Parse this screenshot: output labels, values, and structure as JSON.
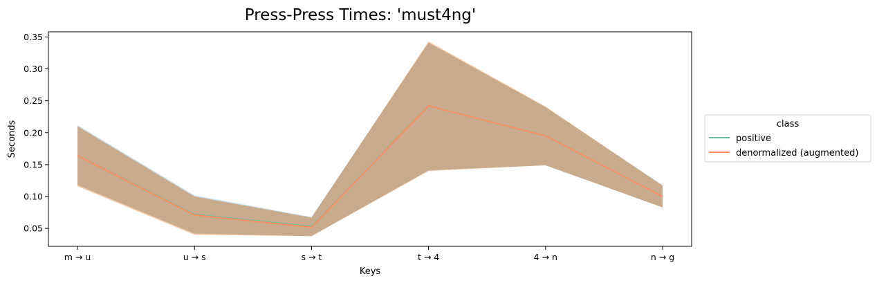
{
  "chart_data": {
    "type": "line",
    "title": "Press-Press Times: 'must4ng'",
    "xlabel": "Keys",
    "ylabel": "Seconds",
    "categories": [
      "m → u",
      "u → s",
      "s → t",
      "t → 4",
      "4 → n",
      "n → g"
    ],
    "ylim": [
      0.022,
      0.358
    ],
    "yticks": [
      0.05,
      0.1,
      0.15,
      0.2,
      0.25,
      0.3,
      0.35
    ],
    "ytick_labels": [
      "0.05",
      "0.10",
      "0.15",
      "0.20",
      "0.25",
      "0.30",
      "0.35"
    ],
    "grid": false,
    "legend": {
      "title": "class",
      "placement": "right"
    },
    "series": [
      {
        "name": "positive",
        "color": "#66c2a5",
        "band_color": "#9ecae1",
        "values": [
          0.164,
          0.072,
          0.053,
          0.242,
          0.195,
          0.1
        ],
        "lower": [
          0.118,
          0.042,
          0.038,
          0.141,
          0.149,
          0.083
        ],
        "upper": [
          0.212,
          0.102,
          0.068,
          0.341,
          0.24,
          0.118
        ]
      },
      {
        "name": "denormalized (augmented)",
        "color": "#fc8d62",
        "band_color": "#f4b585",
        "values": [
          0.164,
          0.071,
          0.052,
          0.242,
          0.195,
          0.1
        ],
        "lower": [
          0.116,
          0.04,
          0.038,
          0.14,
          0.149,
          0.083
        ],
        "upper": [
          0.21,
          0.1,
          0.067,
          0.343,
          0.241,
          0.117
        ]
      }
    ],
    "overlap_color": "#c8aa8d"
  }
}
